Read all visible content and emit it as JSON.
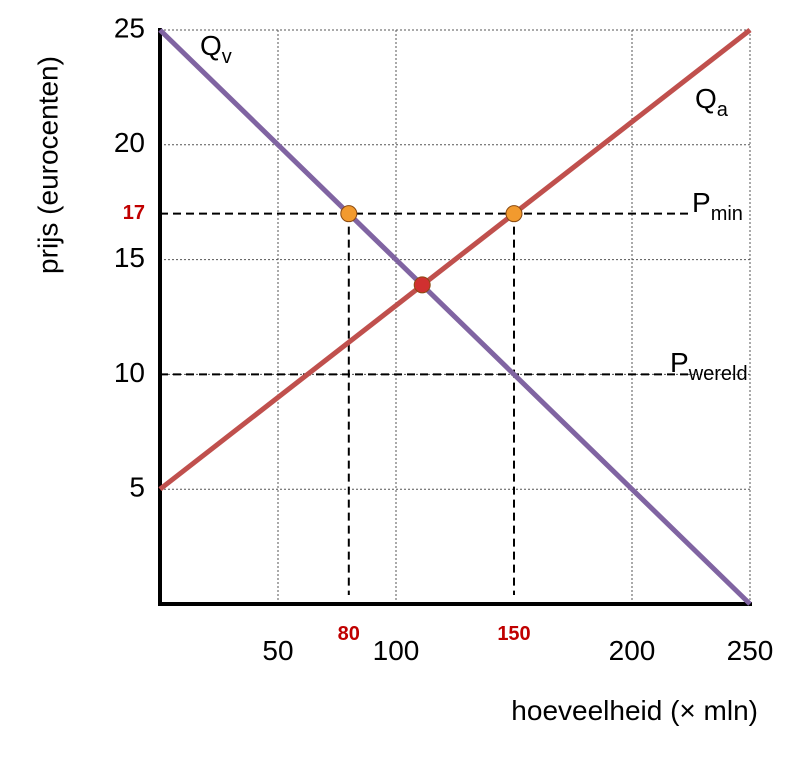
{
  "chart_data": {
    "type": "line",
    "xlabel": "hoeveelheid (× mln)",
    "ylabel": "prijs (eurocenten)",
    "xlim": [
      0,
      250
    ],
    "ylim": [
      0,
      25
    ],
    "xticks": [
      50,
      100,
      200,
      250
    ],
    "yticks": [
      5,
      10,
      15,
      20,
      25
    ],
    "grid": true,
    "series": [
      {
        "name": "Q",
        "sub": "v",
        "color": "#8064a2",
        "x": [
          0,
          250
        ],
        "values": [
          25,
          0
        ]
      },
      {
        "name": "Q",
        "sub": "a",
        "color": "#c0504d",
        "x": [
          0,
          250
        ],
        "values": [
          5,
          25
        ]
      }
    ],
    "hlines": [
      {
        "name": "P",
        "sub": "min",
        "y": 17
      },
      {
        "name": "P",
        "sub": "wereld",
        "y": 10
      }
    ],
    "vlines": [
      {
        "x": 80,
        "y": 17
      },
      {
        "x": 150,
        "y": 17
      }
    ],
    "highlight_color": "#c00000",
    "points": [
      {
        "x": 80,
        "y": 17,
        "color": "#f29a2e"
      },
      {
        "x": 150,
        "y": 17,
        "color": "#f29a2e"
      },
      {
        "x": 111.1,
        "y": 13.9,
        "color": "#d03030"
      }
    ]
  }
}
